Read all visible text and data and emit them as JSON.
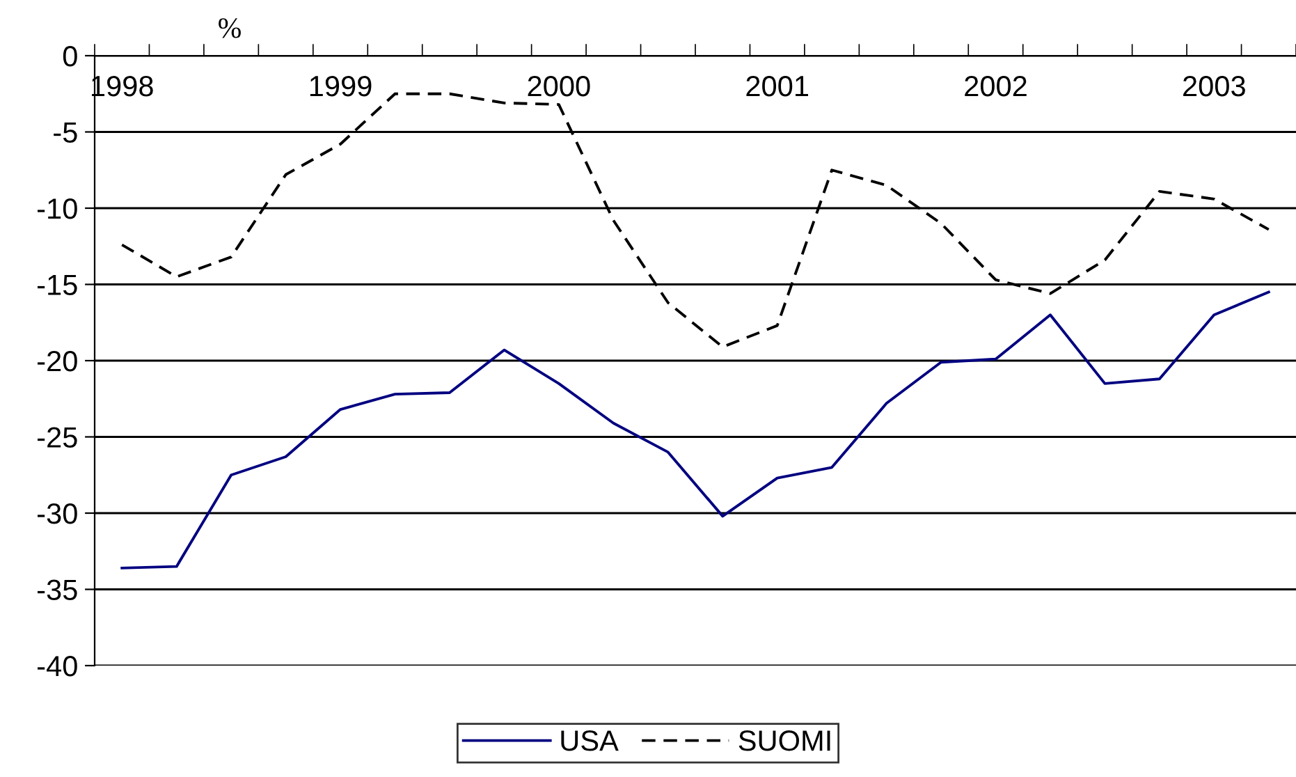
{
  "chart_data": {
    "type": "line",
    "ylabel": "%",
    "categories": [
      "1998",
      null,
      null,
      null,
      "1999",
      null,
      null,
      null,
      "2000",
      null,
      null,
      null,
      "2001",
      null,
      null,
      null,
      "2002",
      null,
      null,
      null,
      "2003",
      null
    ],
    "series": [
      {
        "name": "USA",
        "color": "#000080",
        "line_style": "solid",
        "values": [
          -33.6,
          -33.5,
          -27.5,
          -26.3,
          -23.2,
          -22.2,
          -22.1,
          -19.3,
          -21.5,
          -24.1,
          -26.0,
          -30.2,
          -27.7,
          -27.0,
          -22.8,
          -20.1,
          -19.9,
          -17.0,
          -21.5,
          -21.2,
          -17.0,
          -15.5
        ]
      },
      {
        "name": "SUOMI",
        "color": "#000000",
        "line_style": "dashed",
        "values": [
          -12.4,
          -14.5,
          -13.2,
          -7.8,
          -5.8,
          -2.5,
          -2.5,
          -3.1,
          -3.2,
          -10.8,
          -16.2,
          -19.1,
          -17.7,
          -7.5,
          -8.5,
          -11.0,
          -14.7,
          -15.6,
          -13.4,
          -8.9,
          -9.4,
          -11.4
        ]
      }
    ],
    "ylim": [
      -40,
      0
    ],
    "yticks": [
      -40,
      -35,
      -30,
      -25,
      -20,
      -15,
      -10,
      -5,
      0
    ],
    "grid": "y",
    "legend": "bottom",
    "marker": "none"
  }
}
